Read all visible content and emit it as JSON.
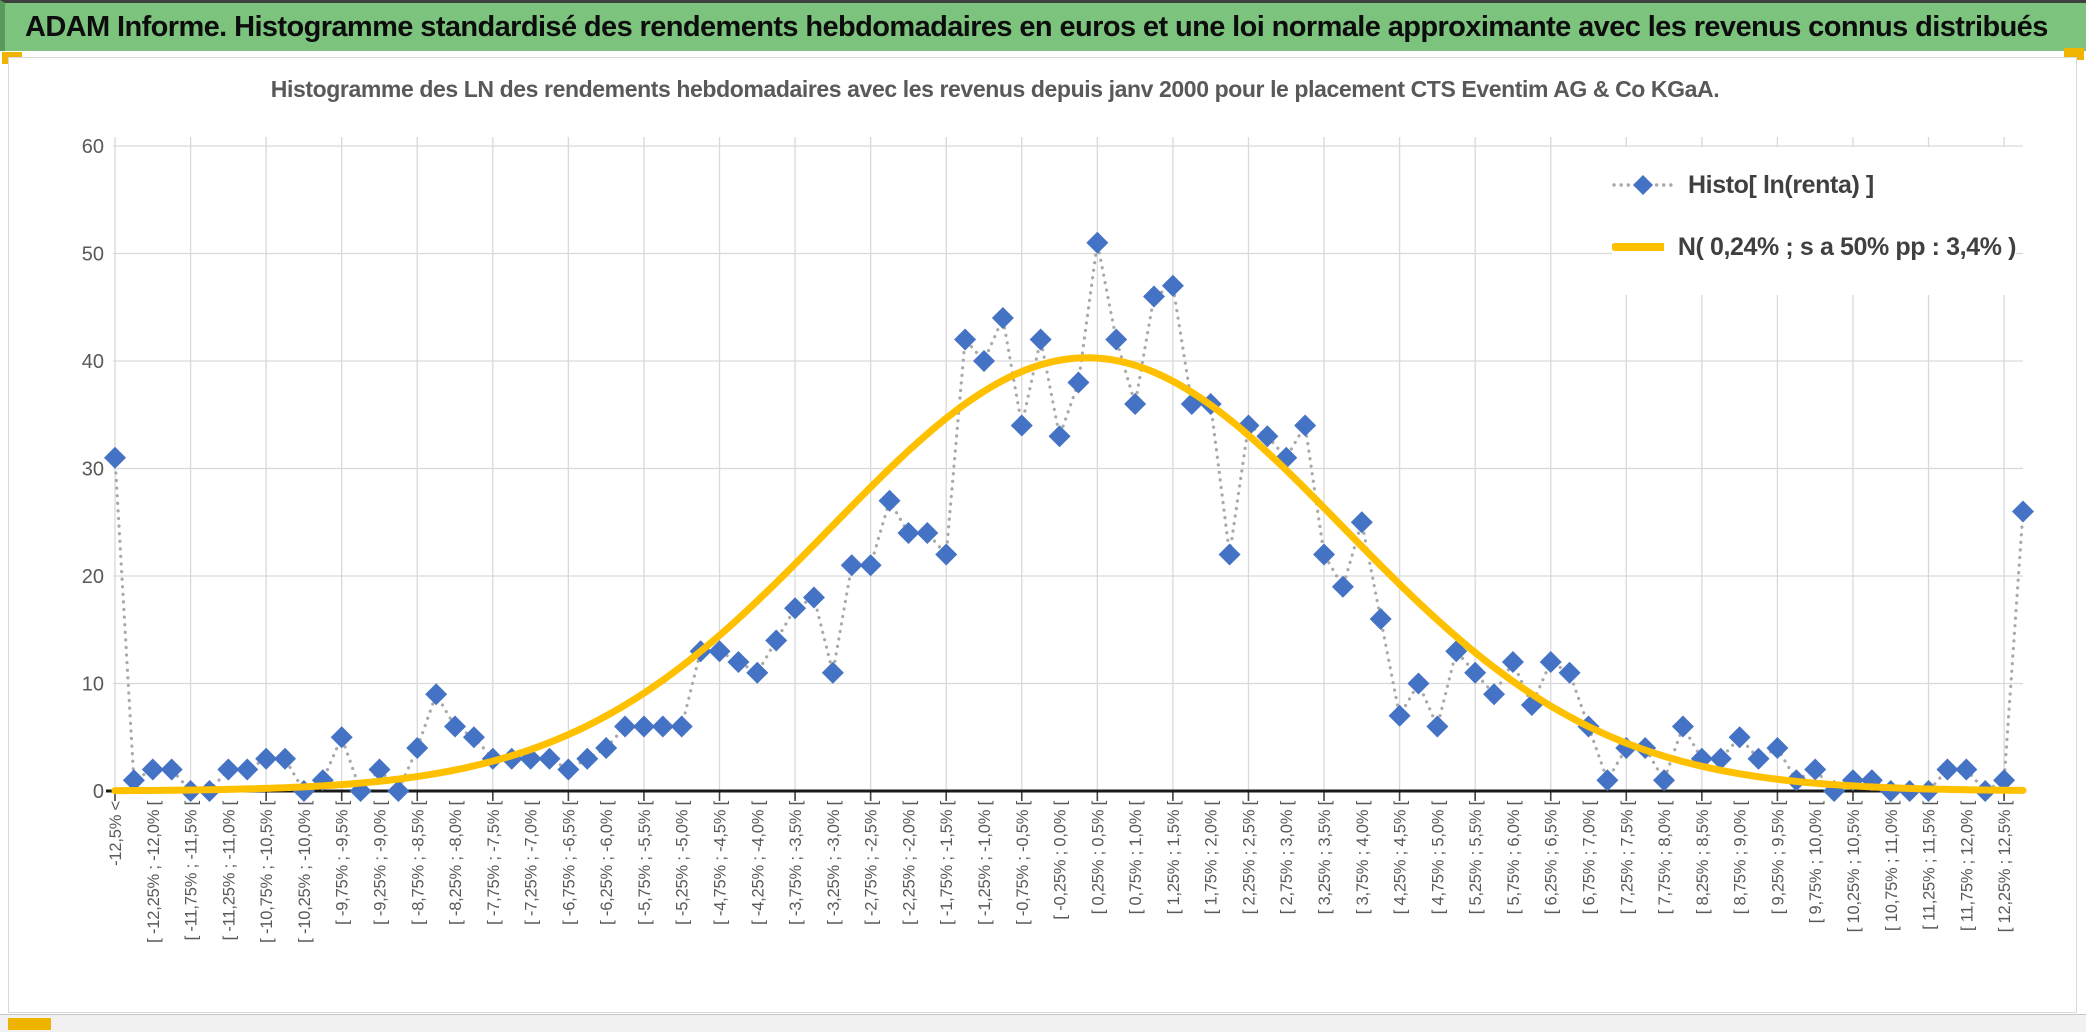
{
  "banner": {
    "title": "ADAM Informe. Histogramme standardisé des rendements hebdomadaires en euros et une loi normale approximante avec les revenus connus distribués"
  },
  "chart": {
    "title": "Histogramme des LN des rendements hebdomadaires avec les revenus depuis janv 2000 pour le placement CTS Eventim AG & Co KGaA.",
    "legend": [
      {
        "label": "Histo[ ln(renta) ]",
        "marker": "blue-diamond-dotted-line"
      },
      {
        "label": "N( 0,24% ; s a 50% pp : 3,4% )",
        "marker": "yellow-solid-line"
      }
    ]
  },
  "chart_data": {
    "type": "line",
    "title": "Histogramme des LN des rendements hebdomadaires avec les revenus depuis janv 2000 pour le placement CTS Eventim AG & Co KGaA.",
    "series_name": "Histo[ ln(renta) ]",
    "ylim": [
      0,
      60
    ],
    "y_ticks": [
      0,
      10,
      20,
      30,
      40,
      50,
      60
    ],
    "grid": true,
    "legend_position": "inside-top-right",
    "label_every_n_points": 2,
    "bin_labels": [
      "-12,5% <",
      "[ -12,25% ; -12,0% [",
      "[ -11,75% ; -11,5% [",
      "[ -11,25% ; -11,0% [",
      "[ -10,75% ; -10,5% [",
      "[ -10,25% ; -10,0% [",
      "[ -9,75% ; -9,5% [",
      "[ -9,25% ; -9,0% [",
      "[ -8,75% ; -8,5% [",
      "[ -8,25% ; -8,0% [",
      "[ -7,75% ; -7,5% [",
      "[ -7,25% ; -7,0% [",
      "[ -6,75% ; -6,5% [",
      "[ -6,25% ; -6,0% [",
      "[ -5,75% ; -5,5% [",
      "[ -5,25% ; -5,0% [",
      "[ -4,75% ; -4,5% [",
      "[ -4,25% ; -4,0% [",
      "[ -3,75% ; -3,5% [",
      "[ -3,25% ; -3,0% [",
      "[ -2,75% ; -2,5% [",
      "[ -2,25% ; -2,0% [",
      "[ -1,75% ; -1,5% [",
      "[ -1,25% ; -1,0% [",
      "[ -0,75% ; -0,5% [",
      "[ -0,25% ; 0,0% [",
      "[ 0,25% ; 0,5% [",
      "[ 0,75% ; 1,0% [",
      "[ 1,25% ; 1,5% [",
      "[ 1,75% ; 2,0% [",
      "[ 2,25% ; 2,5% [",
      "[ 2,75% ; 3,0% [",
      "[ 3,25% ; 3,5% [",
      "[ 3,75% ; 4,0% [",
      "[ 4,25% ; 4,5% [",
      "[ 4,75% ; 5,0% [",
      "[ 5,25% ; 5,5% [",
      "[ 5,75% ; 6,0% [",
      "[ 6,25% ; 6,5% [",
      "[ 6,75% ; 7,0% [",
      "[ 7,25% ; 7,5% [",
      "[ 7,75% ; 8,0% [",
      "[ 8,25% ; 8,5% [",
      "[ 8,75% ; 9,0% [",
      "[ 9,25% ; 9,5% [",
      "[ 9,75% ; 10,0% [",
      "[ 10,25% ; 10,5% [",
      "[ 10,75% ; 11,0% [",
      "[ 11,25% ; 11,5% [",
      "[ 11,75% ; 12,0% [",
      "[ 12,25% ; 12,5% ["
    ],
    "values": [
      31,
      1,
      2,
      2,
      0,
      0,
      2,
      2,
      3,
      3,
      0,
      1,
      5,
      0,
      2,
      0,
      4,
      9,
      6,
      5,
      3,
      3,
      3,
      3,
      2,
      3,
      4,
      6,
      6,
      6,
      6,
      13,
      13,
      12,
      11,
      14,
      17,
      18,
      11,
      21,
      21,
      27,
      24,
      24,
      22,
      42,
      40,
      44,
      34,
      42,
      33,
      38,
      51,
      42,
      36,
      46,
      47,
      36,
      36,
      22,
      34,
      33,
      31,
      34,
      22,
      19,
      25,
      16,
      7,
      10,
      6,
      13,
      11,
      9,
      12,
      8,
      12,
      11,
      6,
      1,
      4,
      4,
      1,
      6,
      3,
      3,
      5,
      3,
      4,
      1,
      2,
      0,
      1,
      1,
      0,
      0,
      0,
      2,
      2,
      0,
      1,
      26
    ],
    "normal_curve": {
      "name": "N( 0,24% ; s a 50% pp : 3,4% )",
      "mean_pct": 0.24,
      "sigma_pct": 3.4,
      "peak_height": 40.3,
      "x_first_bin_pct": -12.625,
      "x_step_pct": 0.25
    }
  },
  "colors": {
    "banner_bg": "#7cc47e",
    "banner_edge": "#579a5b",
    "accent_orange": "#efb400",
    "diamond_blue": "#4472c4",
    "dotted_line": "#a9a9a9",
    "curve_yellow": "#ffc000",
    "gridline": "#d9d9d9",
    "axis_text": "#595959",
    "axis_line": "#1a1a1a"
  }
}
